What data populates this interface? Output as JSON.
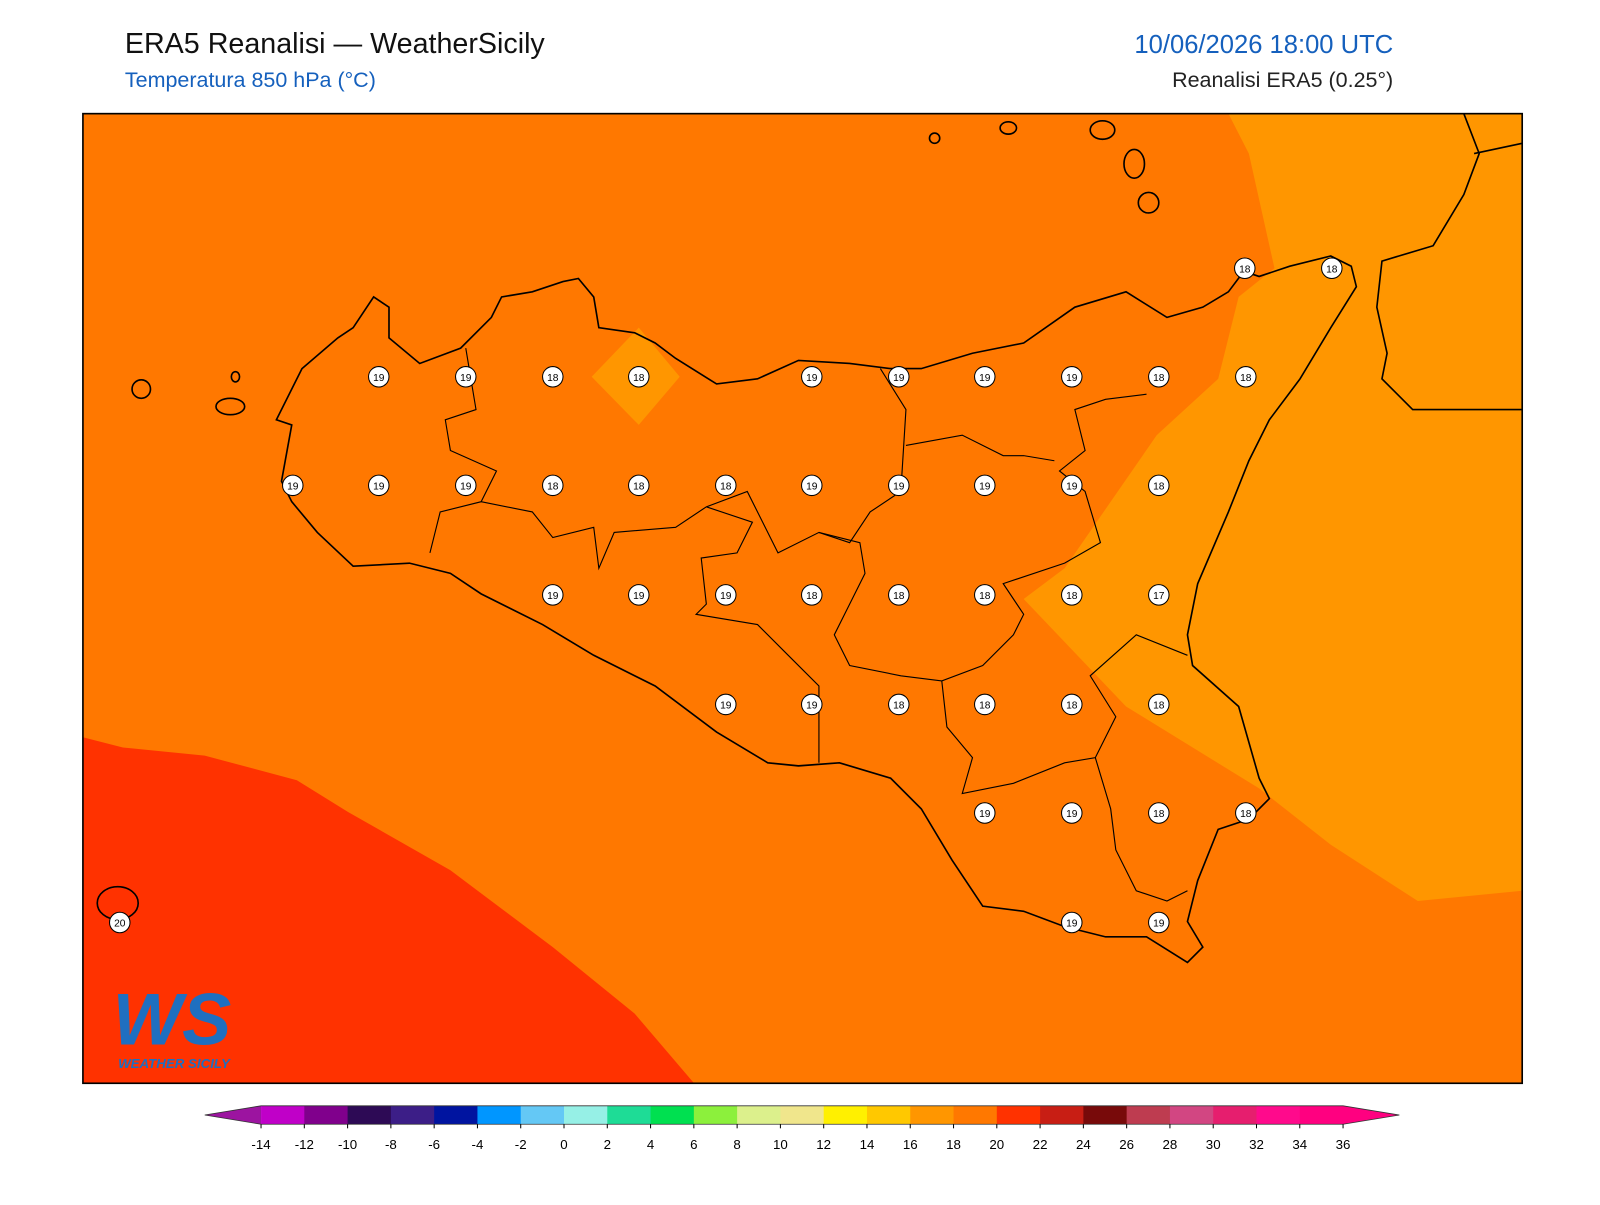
{
  "header": {
    "title": "ERA5 Reanalisi — WeatherSicily",
    "subtitle": "Temperatura 850 hPa (°C)",
    "datetime": "10/06/2026 18:00 UTC",
    "source": "Reanalisi ERA5 (0.25°)"
  },
  "stations": [
    18,
    18,
    19,
    19,
    18,
    18,
    19,
    19,
    19,
    19,
    18,
    18,
    19,
    19,
    19,
    18,
    18,
    18,
    19,
    19,
    19,
    19,
    18,
    19,
    19,
    19,
    18,
    18,
    18,
    18,
    17,
    19,
    19,
    18,
    18,
    18,
    18,
    19,
    19,
    18,
    18,
    20,
    19,
    19
  ],
  "colorbar": {
    "ticks": [
      -14,
      -12,
      -10,
      -8,
      -6,
      -4,
      -2,
      0,
      2,
      4,
      6,
      8,
      10,
      12,
      14,
      16,
      18,
      20,
      22,
      24,
      26,
      28,
      30,
      32,
      34,
      36
    ],
    "colors": [
      "#c000c8",
      "#80008c",
      "#2d0a55",
      "#3c1e87",
      "#0014a0",
      "#0096ff",
      "#64c8f5",
      "#96f0e6",
      "#1edc96",
      "#00e050",
      "#8cf03c",
      "#dcf08c",
      "#f0e68c",
      "#fff000",
      "#ffc800",
      "#ff9600",
      "#ff7800",
      "#ff3200",
      "#c81e14",
      "#780a0a",
      "#be3c50",
      "#d24682",
      "#e61e6e",
      "#ff0a8c",
      "#ff0080"
    ],
    "under": "#9c14a0",
    "over": "#ff0080"
  },
  "logo": {
    "mark": "WS",
    "name": "WEATHER SICILY"
  }
}
